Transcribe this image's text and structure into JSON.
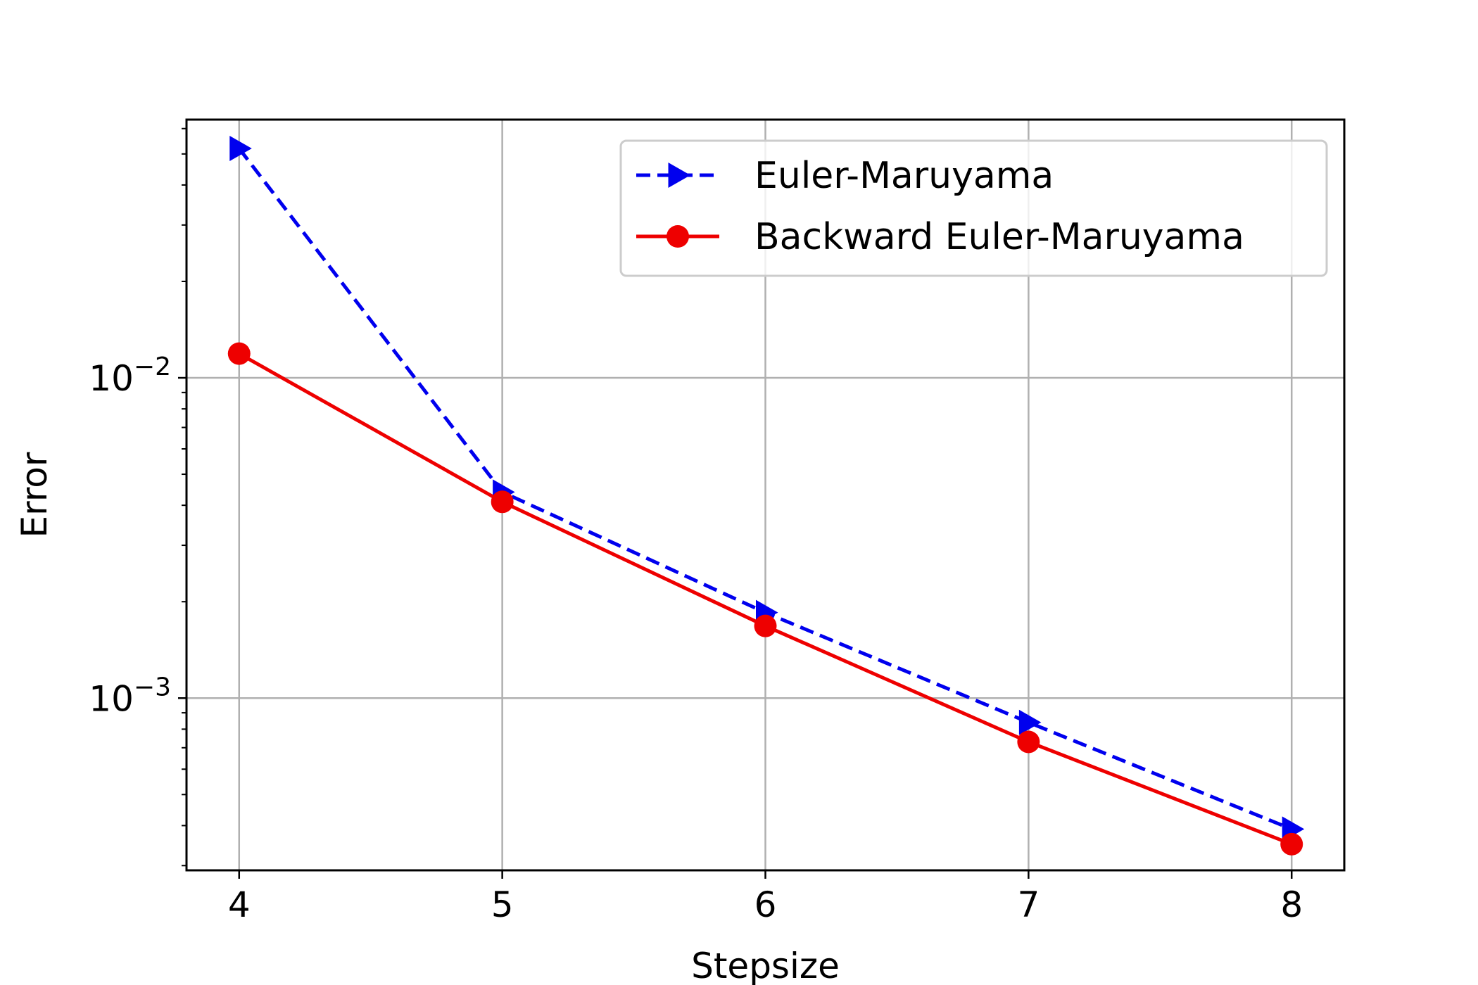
{
  "chart_data": {
    "type": "line",
    "xlabel": "Stepsize",
    "ylabel": "Error",
    "xlim": [
      3.8,
      8.2
    ],
    "ylim": [
      0.00029,
      0.064
    ],
    "y_scale": "log",
    "grid": true,
    "legend_position": "top-right",
    "x_ticks": [
      {
        "value": 4,
        "label": "4"
      },
      {
        "value": 5,
        "label": "5"
      },
      {
        "value": 6,
        "label": "6"
      },
      {
        "value": 7,
        "label": "7"
      },
      {
        "value": 8,
        "label": "8"
      }
    ],
    "y_ticks": [
      {
        "value": 0.001,
        "base": "10",
        "exponent": "−3"
      },
      {
        "value": 0.01,
        "base": "10",
        "exponent": "−2"
      }
    ],
    "series": [
      {
        "name": "Euler-Maruyama",
        "color": "#0000ee",
        "line_style": "dashed",
        "marker": "triangle-right",
        "x": [
          4,
          5,
          6,
          7,
          8
        ],
        "values": [
          0.052,
          0.0044,
          0.00185,
          0.00084,
          0.00039
        ]
      },
      {
        "name": "Backward Euler-Maruyama",
        "color": "#ee0000",
        "line_style": "solid",
        "marker": "circle",
        "x": [
          4,
          5,
          6,
          7,
          8
        ],
        "values": [
          0.0119,
          0.0041,
          0.00168,
          0.00073,
          0.00035
        ]
      }
    ]
  }
}
